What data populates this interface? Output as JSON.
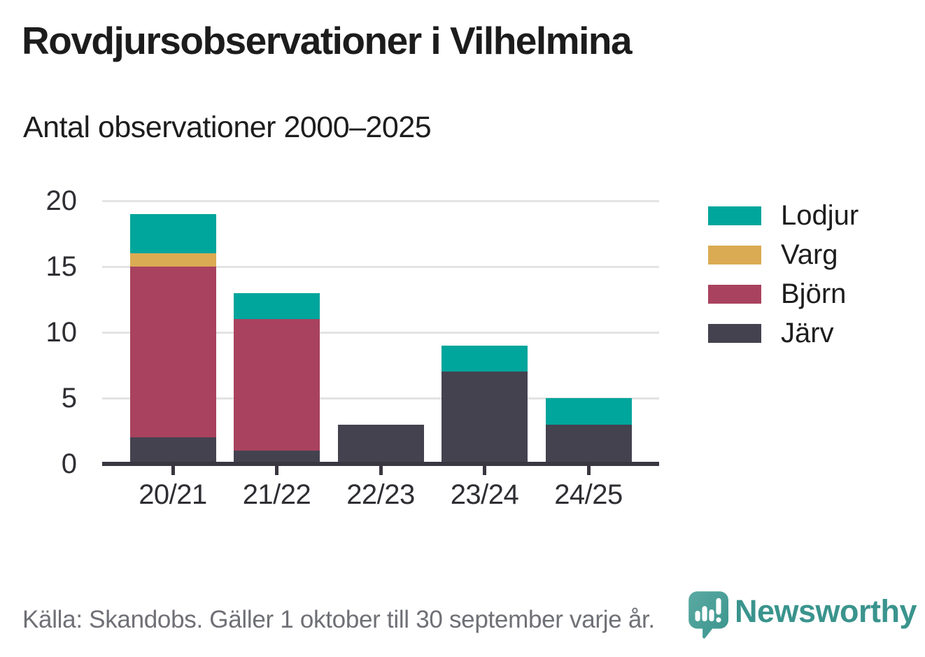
{
  "chart_data": {
    "type": "bar",
    "stacked": true,
    "title": "Rovdjursobservationer i Vilhelmina",
    "subtitle": "Antal observationer 2000–2025",
    "categories": [
      "20/21",
      "21/22",
      "22/23",
      "23/24",
      "24/25"
    ],
    "series": [
      {
        "name": "Järv",
        "color": "#454250",
        "values": [
          2,
          1,
          3,
          7,
          3
        ]
      },
      {
        "name": "Björn",
        "color": "#a9425f",
        "values": [
          13,
          10,
          0,
          0,
          0
        ]
      },
      {
        "name": "Varg",
        "color": "#daab53",
        "values": [
          1,
          0,
          0,
          0,
          0
        ]
      },
      {
        "name": "Lodjur",
        "color": "#00a59c",
        "values": [
          3,
          2,
          0,
          2,
          2
        ]
      }
    ],
    "stack_totals": [
      19,
      13,
      3,
      9,
      5
    ],
    "ylim": [
      0,
      20
    ],
    "yticks": [
      0,
      5,
      10,
      15,
      20
    ],
    "xlabel": "",
    "ylabel": "",
    "grid": true,
    "legend_position": "right",
    "legend_order_top_to_bottom": [
      "Lodjur",
      "Varg",
      "Björn",
      "Järv"
    ]
  },
  "footer": {
    "source": "Källa: Skandobs. Gäller 1 oktober till 30 september varje år.",
    "brand": "Newsworthy"
  },
  "colors": {
    "lodjur_teal": "#00a59c",
    "varg_gold": "#daab53",
    "bjorn_maroon": "#a9425f",
    "jarv_dark": "#454250",
    "gridline": "#e3e3e3",
    "axis": "#3a3741",
    "title_text": "#1c1c1c",
    "footer_gray": "#6f7076",
    "brand_teal": "#3a948d"
  }
}
